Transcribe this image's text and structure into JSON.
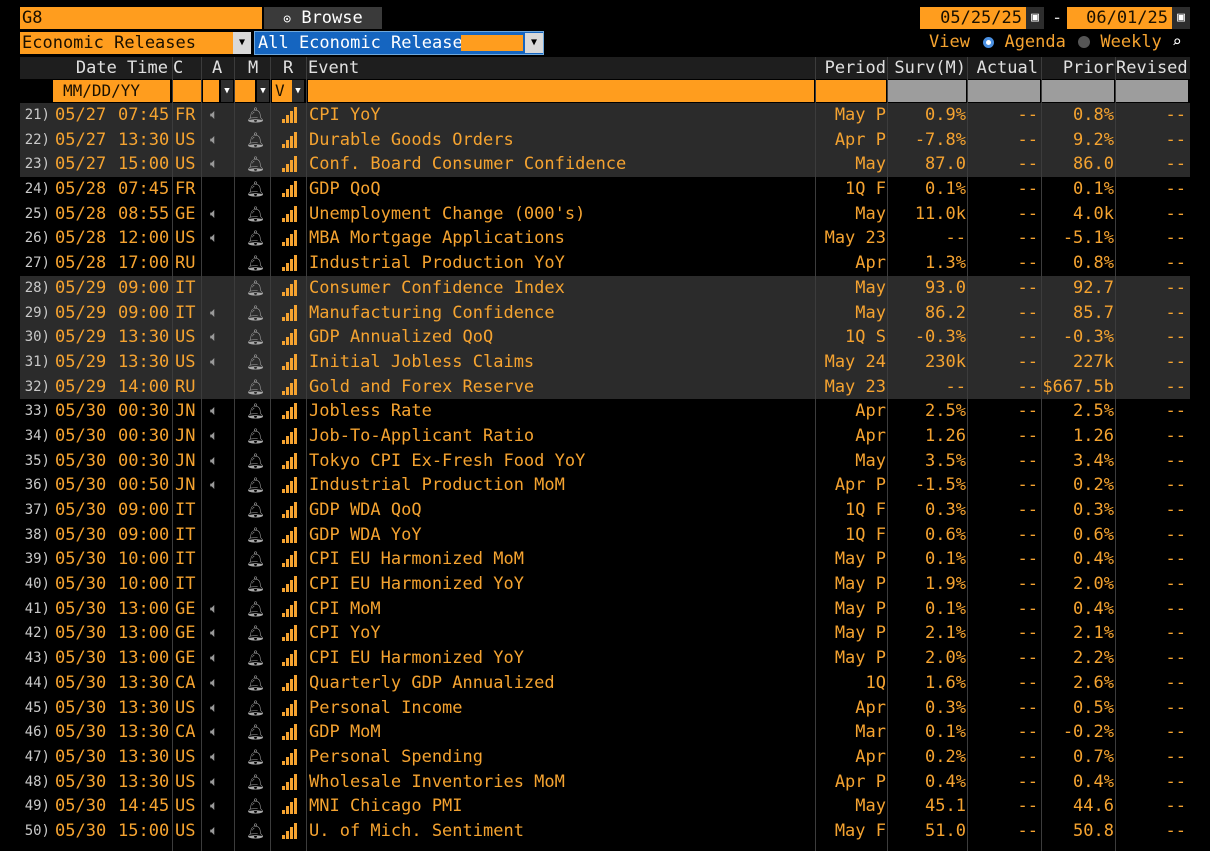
{
  "header": {
    "ticker": "G8",
    "browse_label": "Browse",
    "category_dropdown": "Economic Releases",
    "filter_dropdown": "All Economic Releases",
    "date_from": "05/25/25",
    "date_sep": "-",
    "date_to": "06/01/25",
    "view_label": "View",
    "view_agenda": "Agenda",
    "view_weekly": "Weekly"
  },
  "columns": {
    "datetime": "Date Time",
    "c": "C",
    "a": "A",
    "m": "M",
    "r": "R",
    "event": "Event",
    "period": "Period",
    "surv": "Surv(M)",
    "actual": "Actual",
    "prior": "Prior",
    "revised": "Revised"
  },
  "filter": {
    "date_placeholder": "MM/DD/YY",
    "r_value": "V"
  },
  "rows": [
    {
      "n": "21)",
      "date": "05/27",
      "time": "07:45",
      "c": "FR",
      "a": "speaker",
      "event": "CPI YoY",
      "period": "May P",
      "surv": "0.9%",
      "actual": "--",
      "prior": "0.8%",
      "revised": "--",
      "alt": true
    },
    {
      "n": "22)",
      "date": "05/27",
      "time": "13:30",
      "c": "US",
      "a": "speaker",
      "event": "Durable Goods Orders",
      "period": "Apr P",
      "surv": "-7.8%",
      "actual": "--",
      "prior": "9.2%",
      "revised": "--",
      "alt": true
    },
    {
      "n": "23)",
      "date": "05/27",
      "time": "15:00",
      "c": "US",
      "a": "speaker",
      "event": "Conf. Board Consumer Confidence",
      "period": "May",
      "surv": "87.0",
      "actual": "--",
      "prior": "86.0",
      "revised": "--",
      "alt": true
    },
    {
      "n": "24)",
      "date": "05/28",
      "time": "07:45",
      "c": "FR",
      "a": "",
      "event": "GDP QoQ",
      "period": "1Q F",
      "surv": "0.1%",
      "actual": "--",
      "prior": "0.1%",
      "revised": "--",
      "alt": false
    },
    {
      "n": "25)",
      "date": "05/28",
      "time": "08:55",
      "c": "GE",
      "a": "speaker",
      "event": "Unemployment Change (000's)",
      "period": "May",
      "surv": "11.0k",
      "actual": "--",
      "prior": "4.0k",
      "revised": "--",
      "alt": false
    },
    {
      "n": "26)",
      "date": "05/28",
      "time": "12:00",
      "c": "US",
      "a": "speaker",
      "event": "MBA Mortgage Applications",
      "period": "May 23",
      "surv": "--",
      "actual": "--",
      "prior": "-5.1%",
      "revised": "--",
      "alt": false
    },
    {
      "n": "27)",
      "date": "05/28",
      "time": "17:00",
      "c": "RU",
      "a": "",
      "event": "Industrial Production YoY",
      "period": "Apr",
      "surv": "1.3%",
      "actual": "--",
      "prior": "0.8%",
      "revised": "--",
      "alt": false
    },
    {
      "n": "28)",
      "date": "05/29",
      "time": "09:00",
      "c": "IT",
      "a": "",
      "event": "Consumer Confidence Index",
      "period": "May",
      "surv": "93.0",
      "actual": "--",
      "prior": "92.7",
      "revised": "--",
      "alt": true
    },
    {
      "n": "29)",
      "date": "05/29",
      "time": "09:00",
      "c": "IT",
      "a": "speaker",
      "event": "Manufacturing Confidence",
      "period": "May",
      "surv": "86.2",
      "actual": "--",
      "prior": "85.7",
      "revised": "--",
      "alt": true
    },
    {
      "n": "30)",
      "date": "05/29",
      "time": "13:30",
      "c": "US",
      "a": "speaker",
      "event": "GDP Annualized QoQ",
      "period": "1Q S",
      "surv": "-0.3%",
      "actual": "--",
      "prior": "-0.3%",
      "revised": "--",
      "alt": true
    },
    {
      "n": "31)",
      "date": "05/29",
      "time": "13:30",
      "c": "US",
      "a": "speaker",
      "event": "Initial Jobless Claims",
      "period": "May 24",
      "surv": "230k",
      "actual": "--",
      "prior": "227k",
      "revised": "--",
      "alt": true
    },
    {
      "n": "32)",
      "date": "05/29",
      "time": "14:00",
      "c": "RU",
      "a": "",
      "event": "Gold and Forex Reserve",
      "period": "May 23",
      "surv": "--",
      "actual": "--",
      "prior": "$667.5b",
      "revised": "--",
      "alt": true
    },
    {
      "n": "33)",
      "date": "05/30",
      "time": "00:30",
      "c": "JN",
      "a": "speaker",
      "event": "Jobless Rate",
      "period": "Apr",
      "surv": "2.5%",
      "actual": "--",
      "prior": "2.5%",
      "revised": "--",
      "alt": false
    },
    {
      "n": "34)",
      "date": "05/30",
      "time": "00:30",
      "c": "JN",
      "a": "speaker",
      "event": "Job-To-Applicant Ratio",
      "period": "Apr",
      "surv": "1.26",
      "actual": "--",
      "prior": "1.26",
      "revised": "--",
      "alt": false
    },
    {
      "n": "35)",
      "date": "05/30",
      "time": "00:30",
      "c": "JN",
      "a": "speaker",
      "event": "Tokyo CPI Ex-Fresh Food YoY",
      "period": "May",
      "surv": "3.5%",
      "actual": "--",
      "prior": "3.4%",
      "revised": "--",
      "alt": false
    },
    {
      "n": "36)",
      "date": "05/30",
      "time": "00:50",
      "c": "JN",
      "a": "speaker",
      "event": "Industrial Production MoM",
      "period": "Apr P",
      "surv": "-1.5%",
      "actual": "--",
      "prior": "0.2%",
      "revised": "--",
      "alt": false
    },
    {
      "n": "37)",
      "date": "05/30",
      "time": "09:00",
      "c": "IT",
      "a": "",
      "event": "GDP WDA QoQ",
      "period": "1Q F",
      "surv": "0.3%",
      "actual": "--",
      "prior": "0.3%",
      "revised": "--",
      "alt": false
    },
    {
      "n": "38)",
      "date": "05/30",
      "time": "09:00",
      "c": "IT",
      "a": "",
      "event": "GDP WDA YoY",
      "period": "1Q F",
      "surv": "0.6%",
      "actual": "--",
      "prior": "0.6%",
      "revised": "--",
      "alt": false
    },
    {
      "n": "39)",
      "date": "05/30",
      "time": "10:00",
      "c": "IT",
      "a": "",
      "event": "CPI EU Harmonized MoM",
      "period": "May P",
      "surv": "0.1%",
      "actual": "--",
      "prior": "0.4%",
      "revised": "--",
      "alt": false
    },
    {
      "n": "40)",
      "date": "05/30",
      "time": "10:00",
      "c": "IT",
      "a": "",
      "event": "CPI EU Harmonized YoY",
      "period": "May P",
      "surv": "1.9%",
      "actual": "--",
      "prior": "2.0%",
      "revised": "--",
      "alt": false
    },
    {
      "n": "41)",
      "date": "05/30",
      "time": "13:00",
      "c": "GE",
      "a": "speaker",
      "event": "CPI MoM",
      "period": "May P",
      "surv": "0.1%",
      "actual": "--",
      "prior": "0.4%",
      "revised": "--",
      "alt": false
    },
    {
      "n": "42)",
      "date": "05/30",
      "time": "13:00",
      "c": "GE",
      "a": "speaker",
      "event": "CPI YoY",
      "period": "May P",
      "surv": "2.1%",
      "actual": "--",
      "prior": "2.1%",
      "revised": "--",
      "alt": false
    },
    {
      "n": "43)",
      "date": "05/30",
      "time": "13:00",
      "c": "GE",
      "a": "speaker",
      "event": "CPI EU Harmonized YoY",
      "period": "May P",
      "surv": "2.0%",
      "actual": "--",
      "prior": "2.2%",
      "revised": "--",
      "alt": false
    },
    {
      "n": "44)",
      "date": "05/30",
      "time": "13:30",
      "c": "CA",
      "a": "speaker",
      "event": "Quarterly GDP Annualized",
      "period": "1Q",
      "surv": "1.6%",
      "actual": "--",
      "prior": "2.6%",
      "revised": "--",
      "alt": false
    },
    {
      "n": "45)",
      "date": "05/30",
      "time": "13:30",
      "c": "US",
      "a": "speaker",
      "event": "Personal Income",
      "period": "Apr",
      "surv": "0.3%",
      "actual": "--",
      "prior": "0.5%",
      "revised": "--",
      "alt": false
    },
    {
      "n": "46)",
      "date": "05/30",
      "time": "13:30",
      "c": "CA",
      "a": "speaker",
      "event": "GDP MoM",
      "period": "Mar",
      "surv": "0.1%",
      "actual": "--",
      "prior": "-0.2%",
      "revised": "--",
      "alt": false
    },
    {
      "n": "47)",
      "date": "05/30",
      "time": "13:30",
      "c": "US",
      "a": "speaker",
      "event": "Personal Spending",
      "period": "Apr",
      "surv": "0.2%",
      "actual": "--",
      "prior": "0.7%",
      "revised": "--",
      "alt": false
    },
    {
      "n": "48)",
      "date": "05/30",
      "time": "13:30",
      "c": "US",
      "a": "speaker",
      "event": "Wholesale Inventories MoM",
      "period": "Apr P",
      "surv": "0.4%",
      "actual": "--",
      "prior": "0.4%",
      "revised": "--",
      "alt": false
    },
    {
      "n": "49)",
      "date": "05/30",
      "time": "14:45",
      "c": "US",
      "a": "speaker",
      "event": "MNI Chicago PMI",
      "period": "May",
      "surv": "45.1",
      "actual": "--",
      "prior": "44.6",
      "revised": "--",
      "alt": false
    },
    {
      "n": "50)",
      "date": "05/30",
      "time": "15:00",
      "c": "US",
      "a": "speaker",
      "event": "U. of Mich. Sentiment",
      "period": "May F",
      "surv": "51.0",
      "actual": "--",
      "prior": "50.8",
      "revised": "--",
      "alt": false
    }
  ],
  "colors": {
    "accent": "#ff9d1e",
    "text": "#f5a330",
    "selected_blue": "#1565c0",
    "alt_row": "#2b2b2b"
  }
}
